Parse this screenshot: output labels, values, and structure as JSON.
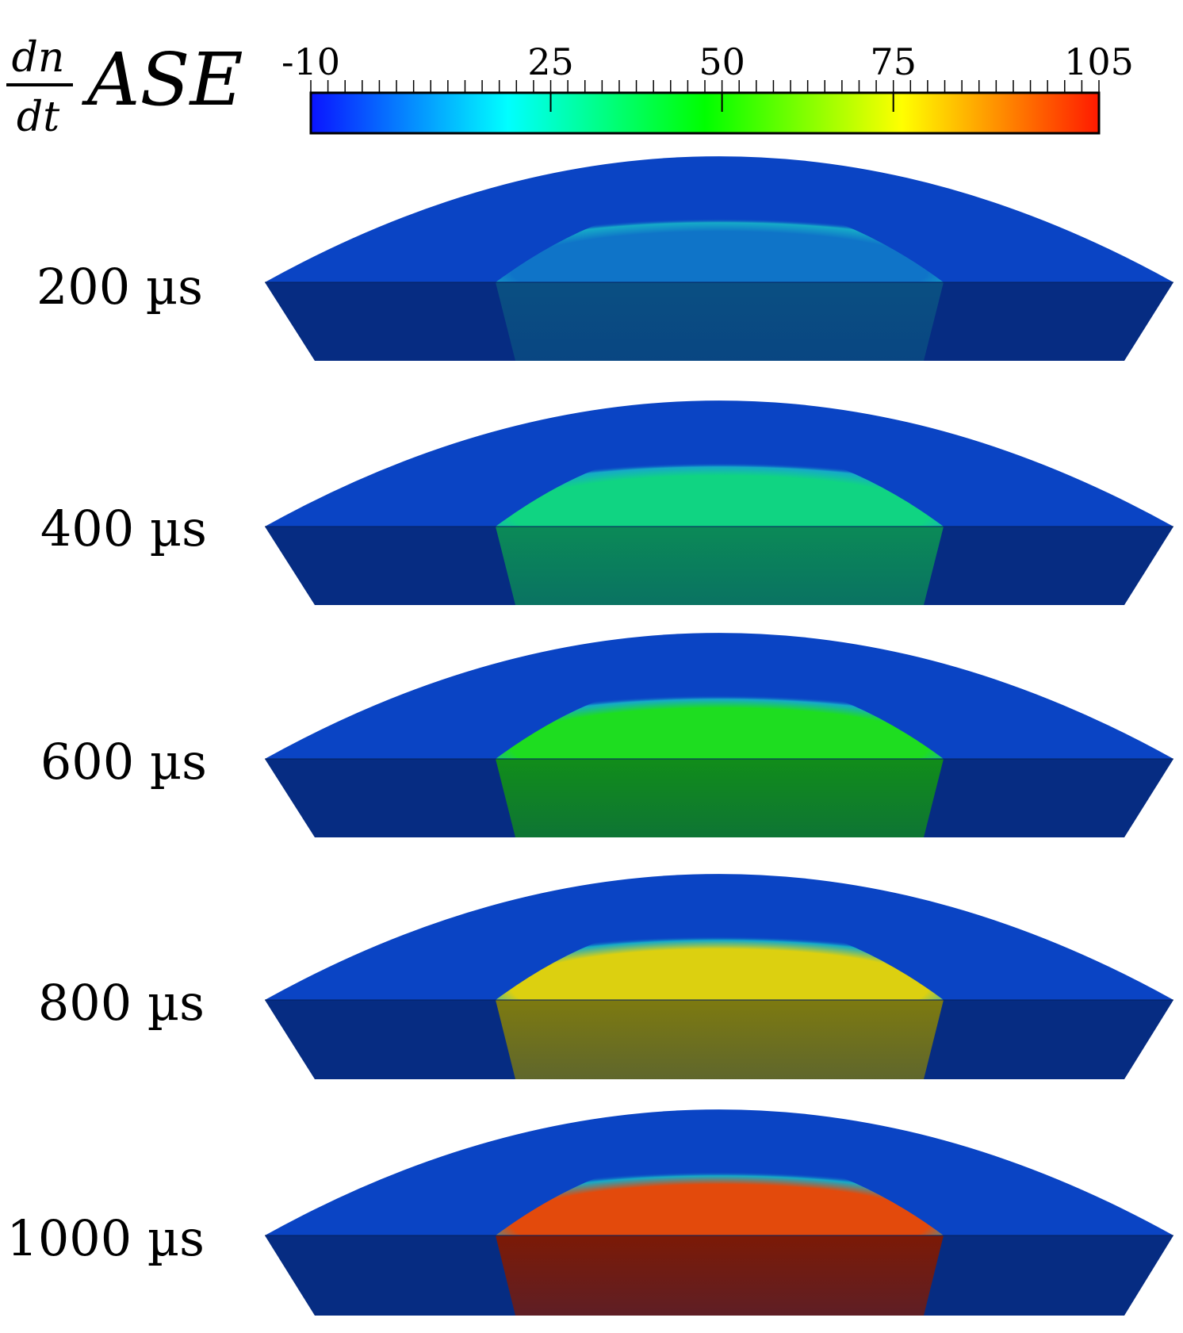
{
  "colorbar": {
    "quantity_numerator": "dn",
    "quantity_denominator": "dt",
    "quantity_name": "ASE",
    "min": -10,
    "max": 105,
    "labeled_ticks": [
      "-10",
      "25",
      "50",
      "75",
      "105"
    ],
    "colormap": [
      "#0a14ff",
      "#00ffff",
      "#00ff00",
      "#ffff00",
      "#ff1a00"
    ]
  },
  "panels": [
    {
      "time_label": "200 µs",
      "core_color": "#0f74c8",
      "core_lower_color": "#0a4f82",
      "core_scale": 1.0
    },
    {
      "time_label": "400 µs",
      "core_color": "#10d482",
      "core_lower_color": "#0b8a57",
      "core_scale": 1.0
    },
    {
      "time_label": "600 µs",
      "core_color": "#1edd20",
      "core_lower_color": "#118d1a",
      "core_scale": 1.0
    },
    {
      "time_label": "800 µs",
      "core_color": "#dcd010",
      "core_lower_color": "#7d7a10",
      "core_scale": 1.0
    },
    {
      "time_label": "1000 µs",
      "core_color": "#e34a0c",
      "core_lower_color": "#7c1a06",
      "core_scale": 1.0
    }
  ],
  "shell_colors": {
    "top": "#0a44c4",
    "side": "#062c82"
  }
}
